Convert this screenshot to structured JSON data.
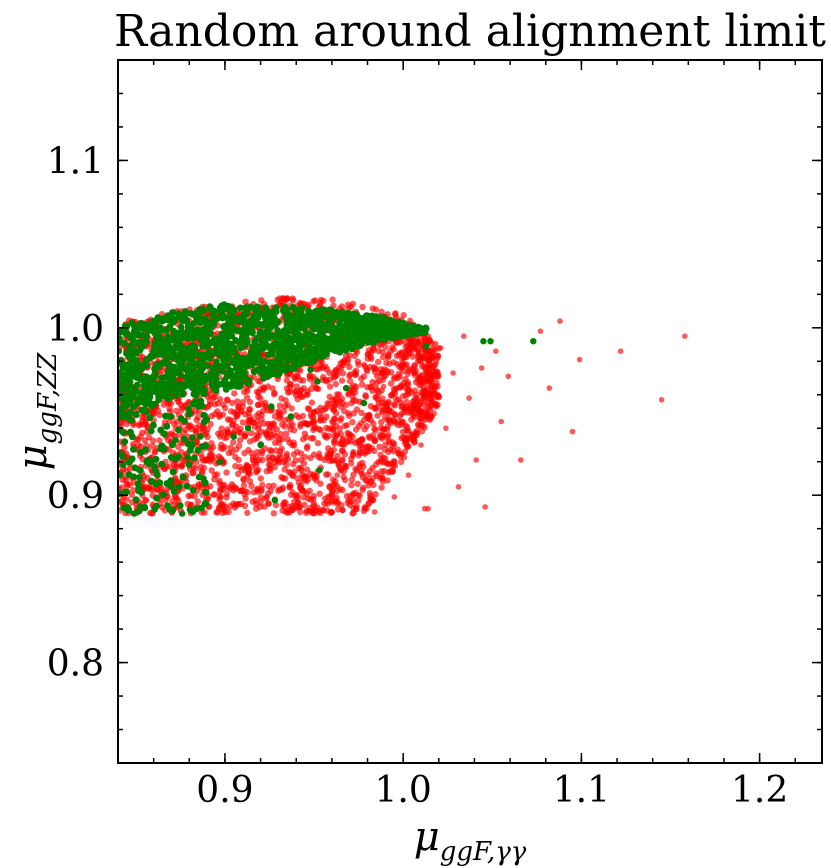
{
  "chart_data": {
    "type": "scatter",
    "title": "Random around alignment limit",
    "xlabel": {
      "main": "μ",
      "sub": "ggF,γγ"
    },
    "ylabel": {
      "main": "μ",
      "sub": "ggF,ZZ"
    },
    "xlim": [
      0.84,
      1.235
    ],
    "ylim": [
      0.74,
      1.16
    ],
    "xticks": [
      0.9,
      1.0,
      1.1,
      1.2
    ],
    "yticks": [
      0.8,
      0.9,
      1.0,
      1.1
    ],
    "xtick_labels": [
      "0.9",
      "1.0",
      "1.1",
      "1.2"
    ],
    "ytick_labels": [
      "0.8",
      "0.9",
      "1.0",
      "1.1"
    ],
    "minor_step": 0.02,
    "grid": false,
    "series": [
      {
        "color": "#ff0000",
        "opacity": 0.65,
        "points": [
          [
            1.158,
            0.995
          ],
          [
            1.145,
            0.957
          ],
          [
            1.122,
            0.986
          ],
          [
            1.099,
            0.981
          ],
          [
            1.095,
            0.938
          ],
          [
            1.088,
            1.004
          ],
          [
            1.082,
            0.964
          ],
          [
            1.077,
            0.998
          ],
          [
            1.066,
            0.921
          ],
          [
            1.059,
            0.971
          ],
          [
            1.055,
            0.944
          ],
          [
            1.052,
            0.986
          ],
          [
            1.046,
            0.893
          ],
          [
            1.044,
            0.976
          ],
          [
            1.041,
            0.921
          ],
          [
            1.037,
            0.958
          ],
          [
            1.034,
            0.995
          ],
          [
            1.031,
            0.905
          ],
          [
            1.028,
            0.973
          ],
          [
            1.024,
            0.94
          ],
          [
            1.021,
            0.988
          ],
          [
            1.018,
            0.955
          ],
          [
            1.014,
            0.892
          ],
          [
            1.012,
            0.892
          ],
          [
            1.01,
            0.93
          ],
          [
            1.008,
            0.969
          ],
          [
            1.006,
            1.002
          ],
          [
            1.003,
            0.912
          ],
          [
            1.001,
            0.951
          ],
          [
            0.998,
            0.985
          ],
          [
            0.995,
            0.899
          ],
          [
            0.992,
            0.936
          ],
          [
            0.989,
            0.965
          ],
          [
            0.986,
            0.92
          ],
          [
            0.984,
            0.89
          ],
          [
            0.981,
            0.948
          ],
          [
            0.978,
            0.978
          ],
          [
            0.975,
            0.9
          ],
          [
            0.972,
            0.926
          ],
          [
            0.969,
            0.96
          ],
          [
            0.966,
            0.891
          ],
          [
            0.963,
            0.912
          ],
          [
            0.96,
            0.944
          ],
          [
            0.956,
            0.898
          ],
          [
            0.953,
            0.925
          ],
          [
            0.95,
            0.891
          ],
          [
            0.946,
            0.908
          ],
          [
            0.942,
            0.893
          ],
          [
            0.938,
            0.902
          ],
          [
            0.934,
            0.89
          ]
        ],
        "dense_region": {
          "x": [
            0.84,
            1.02
          ],
          "y_min": 0.889,
          "y_max_at": [
            [
              0.84,
              1.003
            ],
            [
              0.88,
              1.012
            ],
            [
              0.93,
              1.018
            ],
            [
              0.96,
              1.017
            ],
            [
              1.0,
              1.008
            ],
            [
              1.02,
              0.99
            ]
          ]
        }
      },
      {
        "color": "#008000",
        "opacity": 1.0,
        "points": [
          [
            1.073,
            0.992
          ],
          [
            1.049,
            0.992
          ],
          [
            1.045,
            0.992
          ],
          [
            1.013,
            0.989
          ],
          [
            1.012,
            0.997
          ],
          [
            1.004,
            0.997
          ],
          [
            0.978,
            0.955
          ],
          [
            0.968,
            0.964
          ],
          [
            0.952,
            0.968
          ],
          [
            0.948,
            0.975
          ],
          [
            0.937,
            0.947
          ],
          [
            0.928,
            0.897
          ],
          [
            0.926,
            0.953
          ],
          [
            0.92,
            0.93
          ],
          [
            0.913,
            0.94
          ],
          [
            0.905,
            0.935
          ],
          [
            0.897,
            0.92
          ],
          [
            0.888,
            0.91
          ],
          [
            0.876,
            0.889
          ],
          [
            0.87,
            0.905
          ],
          [
            0.862,
            0.898
          ],
          [
            0.855,
            0.893
          ],
          [
            0.849,
            0.889
          ],
          [
            0.845,
            0.902
          ],
          [
            0.843,
            0.918
          ],
          [
            0.953,
            0.915
          ]
        ],
        "dense_region": {
          "x": [
            0.84,
            1.013
          ],
          "band": [
            [
              0.84,
              0.945,
              1.001
            ],
            [
              0.87,
              0.958,
              1.009
            ],
            [
              0.9,
              0.962,
              1.014
            ],
            [
              0.93,
              0.972,
              1.013
            ],
            [
              0.96,
              0.984,
              1.011
            ],
            [
              0.99,
              0.993,
              1.006
            ],
            [
              1.01,
              0.997,
              1.0
            ]
          ]
        }
      }
    ]
  }
}
